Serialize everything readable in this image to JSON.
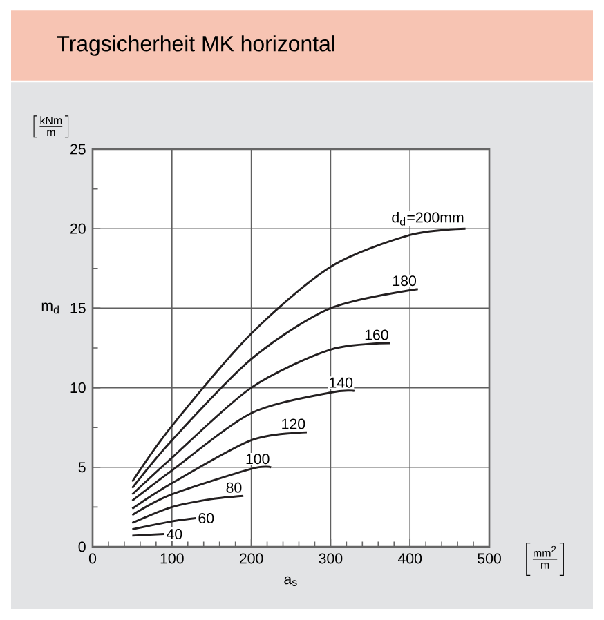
{
  "chart_data": {
    "type": "line",
    "title": "Tragsicherheit      MK      horizontal",
    "xlabel": "a$_{s}$",
    "ylabel": "m$_{d}$",
    "annotations": [
      "\\left[\\frac{\\mathrm{kNm}}{\\mathrm{m}}\\right]",
      "\\left[\\frac{\\mathrm{mm^{2}}}{\\mathrm{m}}\\right]"
    ],
    "xlim": [
      0,
      500
    ],
    "xticks": [
      0,
      100,
      200,
      300,
      400,
      500
    ],
    "ylim": [
      0,
      25
    ],
    "yticks": [
      0,
      5,
      10,
      15,
      20,
      25
    ],
    "grid": true,
    "legend": false,
    "marker": "none",
    "line_style": "solid",
    "series": [
      {
        "name": "d$_{d}$=200mm",
        "color": "#231f20",
        "x": [
          50,
          100,
          200,
          300,
          400,
          470
        ],
        "values": [
          4.1,
          7.6,
          13.4,
          17.6,
          19.6,
          20.0
        ]
      },
      {
        "name": "180",
        "color": "#231f20",
        "x": [
          50,
          100,
          200,
          300,
          410
        ],
        "values": [
          3.7,
          6.7,
          11.8,
          15.0,
          16.2
        ]
      },
      {
        "name": "160",
        "color": "#231f20",
        "x": [
          50,
          100,
          200,
          300,
          375
        ],
        "values": [
          3.3,
          5.6,
          10.0,
          12.4,
          12.8
        ]
      },
      {
        "name": "140",
        "color": "#231f20",
        "x": [
          50,
          100,
          200,
          300,
          330
        ],
        "values": [
          2.9,
          4.8,
          8.4,
          9.7,
          9.8
        ]
      },
      {
        "name": "120",
        "color": "#231f20",
        "x": [
          50,
          100,
          200,
          270
        ],
        "values": [
          2.4,
          4.0,
          6.7,
          7.2
        ]
      },
      {
        "name": "100",
        "color": "#231f20",
        "x": [
          50,
          100,
          200,
          225
        ],
        "values": [
          2.0,
          3.3,
          4.9,
          5.0
        ]
      },
      {
        "name": "80",
        "color": "#231f20",
        "x": [
          50,
          100,
          150,
          190
        ],
        "values": [
          1.5,
          2.5,
          3.0,
          3.2
        ]
      },
      {
        "name": "60",
        "color": "#231f20",
        "x": [
          50,
          100,
          130
        ],
        "values": [
          1.1,
          1.6,
          1.8
        ]
      },
      {
        "name": "40",
        "color": "#231f20",
        "x": [
          50,
          90
        ],
        "values": [
          0.7,
          0.8
        ]
      }
    ]
  }
}
